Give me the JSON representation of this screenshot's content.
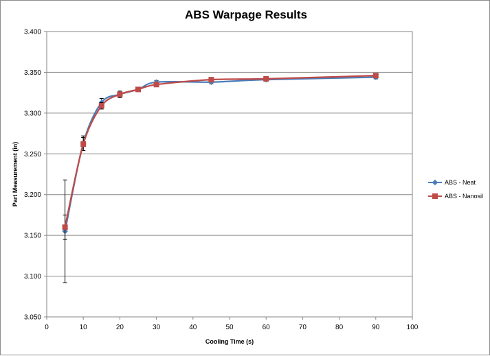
{
  "chart_data": {
    "type": "line",
    "title": "ABS Warpage Results",
    "xlabel": "Cooling Time (s)",
    "ylabel": "Part Measurement (in)",
    "xlim": [
      0,
      100
    ],
    "ylim": [
      3.05,
      3.4
    ],
    "x_ticks": [
      "0",
      "10",
      "20",
      "30",
      "40",
      "50",
      "60",
      "70",
      "80",
      "90",
      "100"
    ],
    "y_ticks": [
      "3.050",
      "3.100",
      "3.150",
      "3.200",
      "3.250",
      "3.300",
      "3.350",
      "3.400"
    ],
    "grid": "horizontal",
    "legend_position": "right",
    "series": [
      {
        "name": "ABS - Neat",
        "color": "#4a7ebb",
        "marker": "diamond",
        "x": [
          5,
          10,
          15,
          20,
          25,
          30,
          45,
          60,
          90
        ],
        "y": [
          3.155,
          3.263,
          3.313,
          3.323,
          3.329,
          3.338,
          3.338,
          3.341,
          3.344
        ],
        "error": [
          0.063,
          0.009,
          0.005,
          0.004,
          0.002,
          0.002,
          0.002,
          0.002,
          0.002
        ]
      },
      {
        "name": "ABS - Nanosil",
        "color": "#be4b48",
        "marker": "square",
        "x": [
          5,
          10,
          15,
          20,
          25,
          30,
          45,
          60,
          90
        ],
        "y": [
          3.16,
          3.262,
          3.309,
          3.323,
          3.329,
          3.335,
          3.341,
          3.342,
          3.346
        ],
        "error": [
          0.015,
          0.008,
          0.004,
          0.003,
          0.001,
          0.001,
          0.001,
          0.001,
          0.001
        ]
      }
    ]
  }
}
